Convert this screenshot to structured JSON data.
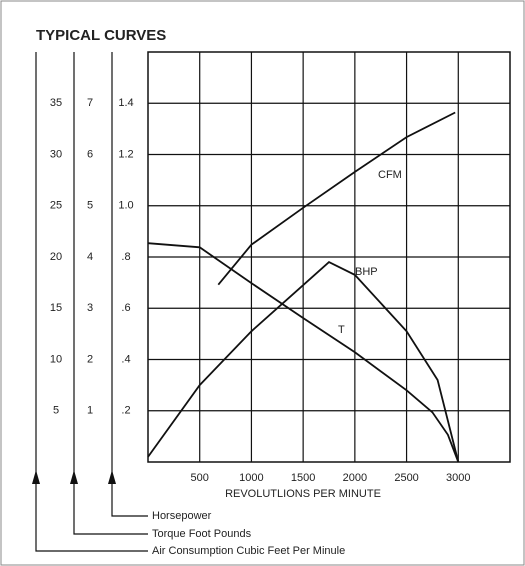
{
  "chart_data": {
    "type": "line",
    "title": "TYPICAL CURVES",
    "x_label": "REVOLUTLIONS PER MINUTE",
    "y_label": "Air Consumption Cubic Feet Per Minule",
    "y2_label": "Torque Foot Pounds",
    "y3_label": "Horsepower",
    "xlim": [
      0,
      3500
    ],
    "xticks": [
      500,
      1000,
      1500,
      2000,
      2500,
      3000
    ],
    "ylim": [
      0,
      40
    ],
    "yticks": [
      5,
      10,
      15,
      20,
      25,
      30,
      35
    ],
    "y2lim": [
      0,
      8
    ],
    "y2ticks": [
      1,
      2,
      3,
      4,
      5,
      6,
      7
    ],
    "y3lim": [
      0,
      1.6
    ],
    "y3ticks": [
      {
        "value": 0.2,
        "label": ".2"
      },
      {
        "value": 0.4,
        "label": ".4"
      },
      {
        "value": 0.6,
        "label": ".6"
      },
      {
        "value": 0.8,
        "label": ".8"
      },
      {
        "value": 1.0,
        "label": "1.0"
      },
      1.2,
      1.4
    ],
    "grid": true,
    "series": [
      {
        "name": "CFM",
        "color": "#111",
        "axis": "y",
        "x": [
          680,
          1000,
          1500,
          2000,
          2500,
          2970
        ],
        "values": [
          17.3,
          21.2,
          24.8,
          28.3,
          31.7,
          34.1
        ]
      },
      {
        "name": "BHP",
        "color": "#111",
        "axis": "y3",
        "x": [
          0,
          500,
          1000,
          1500,
          1750,
          2000,
          2500,
          2800,
          3000
        ],
        "values": [
          0.02,
          0.3,
          0.51,
          0.69,
          0.78,
          0.73,
          0.51,
          0.32,
          0
        ]
      },
      {
        "name": "T",
        "color": "#111",
        "axis": "y2",
        "x": [
          0,
          500,
          1000,
          1500,
          2000,
          2500,
          2750,
          2900,
          3000
        ],
        "values": [
          4.27,
          4.19,
          3.49,
          2.81,
          2.14,
          1.4,
          0.97,
          0.53,
          0
        ]
      }
    ]
  }
}
